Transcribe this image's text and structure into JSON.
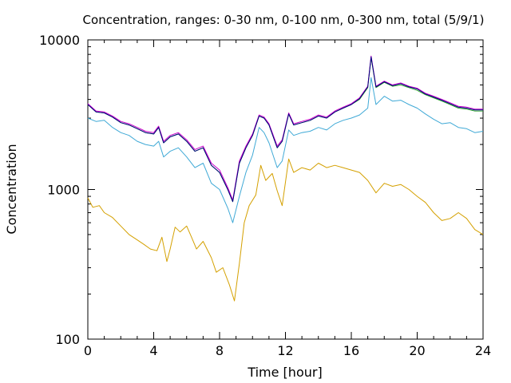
{
  "chart_data": {
    "type": "line",
    "title": "Concentration, ranges: 0-30 nm, 0-100 nm, 0-300 nm, total (5/9/1)",
    "xlabel": "Time [hour]",
    "ylabel": "Concentration",
    "xlim": [
      0,
      24
    ],
    "ylim": [
      100,
      10000
    ],
    "yscale": "log",
    "grid": false,
    "x_ticks": [
      0,
      4,
      8,
      12,
      16,
      20,
      24
    ],
    "x_tick_labels": [
      "0",
      "4",
      "8",
      "12",
      "16",
      "20",
      "24"
    ],
    "y_ticks": [
      100,
      1000,
      10000
    ],
    "y_tick_labels": [
      "100",
      "1000",
      "10000"
    ],
    "series": [
      {
        "color": "#d4a000",
        "points": [
          [
            0,
            880
          ],
          [
            0.3,
            760
          ],
          [
            0.7,
            780
          ],
          [
            1,
            700
          ],
          [
            1.5,
            650
          ],
          [
            2,
            570
          ],
          [
            2.5,
            500
          ],
          [
            3,
            460
          ],
          [
            3.4,
            430
          ],
          [
            3.8,
            400
          ],
          [
            4.2,
            390
          ],
          [
            4.5,
            480
          ],
          [
            4.8,
            330
          ],
          [
            5,
            400
          ],
          [
            5.3,
            560
          ],
          [
            5.6,
            520
          ],
          [
            6,
            570
          ],
          [
            6.3,
            480
          ],
          [
            6.6,
            400
          ],
          [
            7,
            450
          ],
          [
            7.5,
            350
          ],
          [
            7.8,
            280
          ],
          [
            8.2,
            300
          ],
          [
            8.6,
            230
          ],
          [
            8.9,
            180
          ],
          [
            9.2,
            320
          ],
          [
            9.5,
            600
          ],
          [
            9.8,
            780
          ],
          [
            10.2,
            920
          ],
          [
            10.5,
            1450
          ],
          [
            10.8,
            1150
          ],
          [
            11.2,
            1280
          ],
          [
            11.5,
            980
          ],
          [
            11.8,
            780
          ],
          [
            12.2,
            1600
          ],
          [
            12.5,
            1300
          ],
          [
            13,
            1400
          ],
          [
            13.5,
            1350
          ],
          [
            14,
            1500
          ],
          [
            14.5,
            1400
          ],
          [
            15,
            1450
          ],
          [
            15.5,
            1400
          ],
          [
            16,
            1350
          ],
          [
            16.5,
            1300
          ],
          [
            17,
            1150
          ],
          [
            17.5,
            950
          ],
          [
            18,
            1100
          ],
          [
            18.5,
            1050
          ],
          [
            19,
            1080
          ],
          [
            19.5,
            1000
          ],
          [
            20,
            900
          ],
          [
            20.5,
            820
          ],
          [
            21,
            700
          ],
          [
            21.5,
            620
          ],
          [
            22,
            640
          ],
          [
            22.5,
            700
          ],
          [
            23,
            640
          ],
          [
            23.5,
            540
          ],
          [
            24,
            500
          ]
        ]
      },
      {
        "color": "#3fa9d6",
        "points": [
          [
            0,
            3000
          ],
          [
            0.5,
            2850
          ],
          [
            1,
            2900
          ],
          [
            1.5,
            2600
          ],
          [
            2,
            2400
          ],
          [
            2.5,
            2300
          ],
          [
            3,
            2100
          ],
          [
            3.5,
            2000
          ],
          [
            4,
            1950
          ],
          [
            4.3,
            2100
          ],
          [
            4.6,
            1650
          ],
          [
            5,
            1800
          ],
          [
            5.5,
            1900
          ],
          [
            6,
            1650
          ],
          [
            6.5,
            1400
          ],
          [
            7,
            1500
          ],
          [
            7.5,
            1100
          ],
          [
            8,
            1000
          ],
          [
            8.5,
            750
          ],
          [
            8.8,
            600
          ],
          [
            9.2,
            900
          ],
          [
            9.6,
            1300
          ],
          [
            10,
            1700
          ],
          [
            10.4,
            2600
          ],
          [
            10.7,
            2400
          ],
          [
            11,
            2050
          ],
          [
            11.5,
            1400
          ],
          [
            11.8,
            1550
          ],
          [
            12.2,
            2500
          ],
          [
            12.5,
            2300
          ],
          [
            13,
            2400
          ],
          [
            13.5,
            2450
          ],
          [
            14,
            2600
          ],
          [
            14.5,
            2500
          ],
          [
            15,
            2750
          ],
          [
            15.5,
            2900
          ],
          [
            16,
            3000
          ],
          [
            16.5,
            3150
          ],
          [
            17,
            3500
          ],
          [
            17.2,
            5600
          ],
          [
            17.5,
            3700
          ],
          [
            18,
            4200
          ],
          [
            18.5,
            3900
          ],
          [
            19,
            3950
          ],
          [
            19.5,
            3700
          ],
          [
            20,
            3500
          ],
          [
            20.5,
            3200
          ],
          [
            21,
            2950
          ],
          [
            21.5,
            2750
          ],
          [
            22,
            2800
          ],
          [
            22.5,
            2600
          ],
          [
            23,
            2550
          ],
          [
            23.5,
            2400
          ],
          [
            24,
            2450
          ]
        ]
      },
      {
        "color": "#2ca02c",
        "points": [
          [
            0,
            3700
          ],
          [
            0.5,
            3300
          ],
          [
            1,
            3250
          ],
          [
            1.5,
            3050
          ],
          [
            2,
            2800
          ],
          [
            2.5,
            2700
          ],
          [
            3,
            2550
          ],
          [
            3.5,
            2400
          ],
          [
            4,
            2350
          ],
          [
            4.3,
            2600
          ],
          [
            4.6,
            2050
          ],
          [
            5,
            2250
          ],
          [
            5.5,
            2350
          ],
          [
            6,
            2100
          ],
          [
            6.5,
            1800
          ],
          [
            7,
            1900
          ],
          [
            7.5,
            1450
          ],
          [
            8,
            1300
          ],
          [
            8.5,
            1000
          ],
          [
            8.8,
            830
          ],
          [
            9.2,
            1500
          ],
          [
            9.6,
            1900
          ],
          [
            10,
            2300
          ],
          [
            10.4,
            3100
          ],
          [
            10.7,
            3000
          ],
          [
            11,
            2700
          ],
          [
            11.5,
            1900
          ],
          [
            11.8,
            2100
          ],
          [
            12.2,
            3200
          ],
          [
            12.5,
            2700
          ],
          [
            13,
            2800
          ],
          [
            13.5,
            2900
          ],
          [
            14,
            3100
          ],
          [
            14.5,
            3000
          ],
          [
            15,
            3300
          ],
          [
            15.5,
            3500
          ],
          [
            16,
            3700
          ],
          [
            16.5,
            4000
          ],
          [
            17,
            4800
          ],
          [
            17.2,
            7600
          ],
          [
            17.5,
            4800
          ],
          [
            18,
            5200
          ],
          [
            18.5,
            4900
          ],
          [
            19,
            5000
          ],
          [
            19.5,
            4800
          ],
          [
            20,
            4600
          ],
          [
            20.5,
            4300
          ],
          [
            21,
            4100
          ],
          [
            21.5,
            3900
          ],
          [
            22,
            3700
          ],
          [
            22.5,
            3500
          ],
          [
            23,
            3450
          ],
          [
            23.5,
            3350
          ],
          [
            24,
            3350
          ]
        ]
      },
      {
        "color": "#cc00cc",
        "points": [
          [
            0,
            3750
          ],
          [
            0.5,
            3350
          ],
          [
            1,
            3300
          ],
          [
            1.5,
            3100
          ],
          [
            2,
            2850
          ],
          [
            2.5,
            2750
          ],
          [
            3,
            2600
          ],
          [
            3.5,
            2450
          ],
          [
            4,
            2400
          ],
          [
            4.3,
            2650
          ],
          [
            4.6,
            2100
          ],
          [
            5,
            2300
          ],
          [
            5.5,
            2400
          ],
          [
            6,
            2150
          ],
          [
            6.5,
            1850
          ],
          [
            7,
            1950
          ],
          [
            7.5,
            1500
          ],
          [
            8,
            1350
          ],
          [
            8.5,
            1030
          ],
          [
            8.8,
            850
          ],
          [
            9.2,
            1550
          ],
          [
            9.6,
            1950
          ],
          [
            10,
            2350
          ],
          [
            10.4,
            3150
          ],
          [
            10.7,
            3050
          ],
          [
            11,
            2750
          ],
          [
            11.5,
            1950
          ],
          [
            11.8,
            2150
          ],
          [
            12.2,
            3250
          ],
          [
            12.5,
            2750
          ],
          [
            13,
            2850
          ],
          [
            13.5,
            2950
          ],
          [
            14,
            3150
          ],
          [
            14.5,
            3050
          ],
          [
            15,
            3350
          ],
          [
            15.5,
            3550
          ],
          [
            16,
            3750
          ],
          [
            16.5,
            4100
          ],
          [
            17,
            4900
          ],
          [
            17.2,
            7800
          ],
          [
            17.5,
            4900
          ],
          [
            18,
            5300
          ],
          [
            18.5,
            5000
          ],
          [
            19,
            5150
          ],
          [
            19.5,
            4900
          ],
          [
            20,
            4750
          ],
          [
            20.5,
            4400
          ],
          [
            21,
            4200
          ],
          [
            21.5,
            4000
          ],
          [
            22,
            3800
          ],
          [
            22.5,
            3600
          ],
          [
            23,
            3550
          ],
          [
            23.5,
            3450
          ],
          [
            24,
            3450
          ]
        ]
      },
      {
        "color": "#000080",
        "points": [
          [
            0,
            3700
          ],
          [
            0.5,
            3300
          ],
          [
            1,
            3250
          ],
          [
            1.5,
            3050
          ],
          [
            2,
            2800
          ],
          [
            2.5,
            2700
          ],
          [
            3,
            2550
          ],
          [
            3.5,
            2400
          ],
          [
            4,
            2350
          ],
          [
            4.3,
            2600
          ],
          [
            4.6,
            2050
          ],
          [
            5,
            2250
          ],
          [
            5.5,
            2350
          ],
          [
            6,
            2100
          ],
          [
            6.5,
            1800
          ],
          [
            7,
            1900
          ],
          [
            7.5,
            1450
          ],
          [
            8,
            1300
          ],
          [
            8.5,
            1000
          ],
          [
            8.8,
            830
          ],
          [
            9.2,
            1500
          ],
          [
            9.6,
            1900
          ],
          [
            10,
            2300
          ],
          [
            10.4,
            3100
          ],
          [
            10.7,
            3000
          ],
          [
            11,
            2700
          ],
          [
            11.5,
            1900
          ],
          [
            11.8,
            2100
          ],
          [
            12.2,
            3200
          ],
          [
            12.5,
            2700
          ],
          [
            13,
            2800
          ],
          [
            13.5,
            2900
          ],
          [
            14,
            3100
          ],
          [
            14.5,
            3000
          ],
          [
            15,
            3300
          ],
          [
            15.5,
            3500
          ],
          [
            16,
            3700
          ],
          [
            16.5,
            4050
          ],
          [
            17,
            4850
          ],
          [
            17.2,
            7700
          ],
          [
            17.5,
            4850
          ],
          [
            18,
            5250
          ],
          [
            18.5,
            4950
          ],
          [
            19,
            5100
          ],
          [
            19.5,
            4850
          ],
          [
            20,
            4700
          ],
          [
            20.5,
            4350
          ],
          [
            21,
            4150
          ],
          [
            21.5,
            3950
          ],
          [
            22,
            3750
          ],
          [
            22.5,
            3550
          ],
          [
            23,
            3500
          ],
          [
            23.5,
            3400
          ],
          [
            24,
            3400
          ]
        ]
      }
    ]
  }
}
